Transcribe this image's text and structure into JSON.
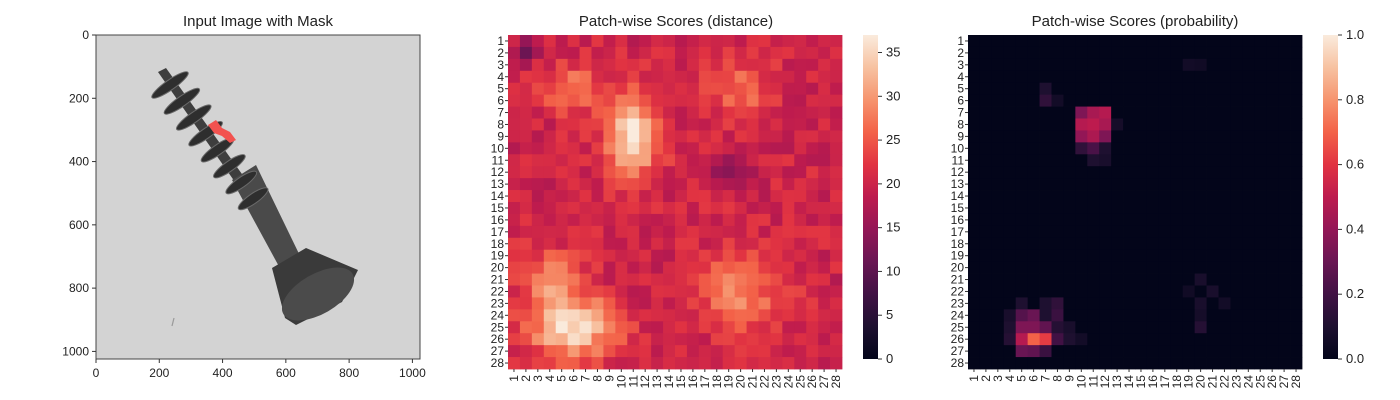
{
  "figure": {
    "panels": [
      {
        "title": "Input Image with Mask"
      },
      {
        "title": "Patch-wise Scores (distance)"
      },
      {
        "title": "Patch-wise Scores (probability)"
      }
    ]
  },
  "chart_data": [
    {
      "type": "image",
      "title": "Input Image with Mask",
      "xticks": [
        0,
        200,
        400,
        600,
        800,
        1000
      ],
      "yticks": [
        0,
        200,
        400,
        600,
        800,
        1000
      ],
      "xlim": [
        0,
        1024
      ],
      "ylim": [
        1024,
        0
      ],
      "description_colors": {
        "background": "#d2d2d2",
        "object": "#454545",
        "mask": "#f2524f"
      }
    },
    {
      "type": "heatmap",
      "title": "Patch-wise Scores (distance)",
      "x_labels": [
        "1",
        "2",
        "3",
        "4",
        "5",
        "6",
        "7",
        "8",
        "9",
        "10",
        "11",
        "12",
        "13",
        "14",
        "15",
        "16",
        "17",
        "18",
        "19",
        "20",
        "21",
        "22",
        "23",
        "24",
        "25",
        "26",
        "27",
        "28"
      ],
      "y_labels": [
        "1",
        "2",
        "3",
        "4",
        "5",
        "6",
        "7",
        "8",
        "9",
        "10",
        "11",
        "12",
        "13",
        "14",
        "15",
        "16",
        "17",
        "18",
        "19",
        "20",
        "21",
        "22",
        "23",
        "24",
        "25",
        "26",
        "27",
        "28"
      ],
      "colorbar_ticks": [
        0,
        5,
        10,
        15,
        20,
        25,
        30,
        35
      ],
      "vmin": 0,
      "vmax": 37,
      "colormap": "rocket",
      "baseline": 20,
      "hotspots": [
        {
          "row": 9,
          "col": 11,
          "value": 37,
          "rx": 2.2,
          "ry": 3.2
        },
        {
          "row": 5,
          "col": 6,
          "value": 28,
          "rx": 2.5,
          "ry": 2.0
        },
        {
          "row": 25,
          "col": 6,
          "value": 36,
          "rx": 3.5,
          "ry": 2.5
        },
        {
          "row": 21,
          "col": 4,
          "value": 28,
          "rx": 2.5,
          "ry": 2.5
        },
        {
          "row": 22,
          "col": 20,
          "value": 28,
          "rx": 3.5,
          "ry": 3.5
        },
        {
          "row": 5,
          "col": 20,
          "value": 27,
          "rx": 2.5,
          "ry": 2.5
        },
        {
          "row": 12,
          "col": 19,
          "value": 12,
          "rx": 1.5,
          "ry": 1.0
        },
        {
          "row": 2,
          "col": 2,
          "value": 12,
          "rx": 1.0,
          "ry": 1.0
        }
      ]
    },
    {
      "type": "heatmap",
      "title": "Patch-wise Scores (probability)",
      "x_labels": [
        "1",
        "2",
        "3",
        "4",
        "5",
        "6",
        "7",
        "8",
        "9",
        "10",
        "11",
        "12",
        "13",
        "14",
        "15",
        "16",
        "17",
        "18",
        "19",
        "20",
        "21",
        "22",
        "23",
        "24",
        "25",
        "26",
        "27",
        "28"
      ],
      "y_labels": [
        "1",
        "2",
        "3",
        "4",
        "5",
        "6",
        "7",
        "8",
        "9",
        "10",
        "11",
        "12",
        "13",
        "14",
        "15",
        "16",
        "17",
        "18",
        "19",
        "20",
        "21",
        "22",
        "23",
        "24",
        "25",
        "26",
        "27",
        "28"
      ],
      "colorbar_ticks": [
        "0.0",
        "0.2",
        "0.4",
        "0.6",
        "0.8",
        "1.0"
      ],
      "vmin": 0,
      "vmax": 1,
      "colormap": "rocket",
      "cells": [
        {
          "row": 7,
          "col": 10,
          "value": 0.35
        },
        {
          "row": 7,
          "col": 11,
          "value": 0.45
        },
        {
          "row": 7,
          "col": 12,
          "value": 0.48
        },
        {
          "row": 8,
          "col": 10,
          "value": 0.48
        },
        {
          "row": 8,
          "col": 11,
          "value": 0.5
        },
        {
          "row": 8,
          "col": 12,
          "value": 0.45
        },
        {
          "row": 9,
          "col": 10,
          "value": 0.4
        },
        {
          "row": 9,
          "col": 11,
          "value": 0.46
        },
        {
          "row": 9,
          "col": 12,
          "value": 0.35
        },
        {
          "row": 10,
          "col": 10,
          "value": 0.15
        },
        {
          "row": 10,
          "col": 11,
          "value": 0.22
        },
        {
          "row": 10,
          "col": 12,
          "value": 0.1
        },
        {
          "row": 11,
          "col": 11,
          "value": 0.1
        },
        {
          "row": 11,
          "col": 12,
          "value": 0.08
        },
        {
          "row": 6,
          "col": 7,
          "value": 0.15
        },
        {
          "row": 5,
          "col": 7,
          "value": 0.1
        },
        {
          "row": 8,
          "col": 13,
          "value": 0.07
        },
        {
          "row": 24,
          "col": 5,
          "value": 0.25
        },
        {
          "row": 24,
          "col": 6,
          "value": 0.3
        },
        {
          "row": 24,
          "col": 7,
          "value": 0.1
        },
        {
          "row": 25,
          "col": 5,
          "value": 0.35
        },
        {
          "row": 25,
          "col": 6,
          "value": 0.35
        },
        {
          "row": 25,
          "col": 7,
          "value": 0.28
        },
        {
          "row": 25,
          "col": 8,
          "value": 0.12
        },
        {
          "row": 26,
          "col": 5,
          "value": 0.48
        },
        {
          "row": 26,
          "col": 6,
          "value": 0.7
        },
        {
          "row": 26,
          "col": 7,
          "value": 0.62
        },
        {
          "row": 26,
          "col": 8,
          "value": 0.2
        },
        {
          "row": 27,
          "col": 5,
          "value": 0.3
        },
        {
          "row": 27,
          "col": 6,
          "value": 0.28
        },
        {
          "row": 27,
          "col": 7,
          "value": 0.18
        },
        {
          "row": 23,
          "col": 5,
          "value": 0.1
        },
        {
          "row": 23,
          "col": 7,
          "value": 0.1
        },
        {
          "row": 23,
          "col": 8,
          "value": 0.15
        },
        {
          "row": 24,
          "col": 8,
          "value": 0.18
        },
        {
          "row": 24,
          "col": 4,
          "value": 0.08
        },
        {
          "row": 25,
          "col": 4,
          "value": 0.1
        },
        {
          "row": 26,
          "col": 4,
          "value": 0.12
        },
        {
          "row": 25,
          "col": 9,
          "value": 0.08
        },
        {
          "row": 26,
          "col": 9,
          "value": 0.1
        },
        {
          "row": 26,
          "col": 10,
          "value": 0.06
        },
        {
          "row": 23,
          "col": 20,
          "value": 0.08
        },
        {
          "row": 24,
          "col": 20,
          "value": 0.07
        },
        {
          "row": 25,
          "col": 20,
          "value": 0.12
        },
        {
          "row": 22,
          "col": 21,
          "value": 0.08
        },
        {
          "row": 21,
          "col": 20,
          "value": 0.08
        },
        {
          "row": 23,
          "col": 22,
          "value": 0.06
        },
        {
          "row": 22,
          "col": 19,
          "value": 0.05
        },
        {
          "row": 3,
          "col": 19,
          "value": 0.06
        },
        {
          "row": 3,
          "col": 20,
          "value": 0.05
        },
        {
          "row": 6,
          "col": 8,
          "value": 0.06
        }
      ]
    }
  ]
}
